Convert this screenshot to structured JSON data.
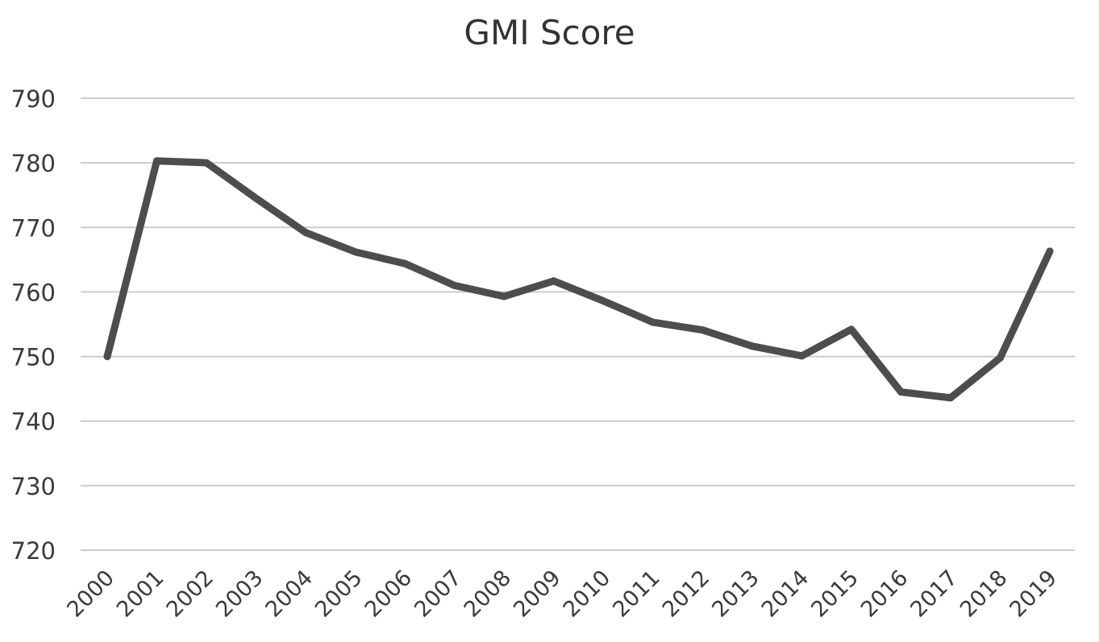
{
  "chart_data": {
    "type": "line",
    "title": "GMI Score",
    "xlabel": "",
    "ylabel": "",
    "categories": [
      "2000",
      "2001",
      "2002",
      "2003",
      "2004",
      "2005",
      "2006",
      "2007",
      "2008",
      "2009",
      "2010",
      "2011",
      "2012",
      "2013",
      "2014",
      "2015",
      "2016",
      "2017",
      "2018",
      "2019"
    ],
    "series": [
      {
        "values": [
          750,
          780.3,
          780,
          774.5,
          769.2,
          766.2,
          764.4,
          761,
          759.3,
          761.7,
          758.6,
          755.3,
          754.1,
          751.6,
          750.1,
          754.2,
          744.5,
          743.6,
          749.8,
          766.3
        ]
      }
    ],
    "ylim": [
      720,
      790
    ],
    "yticks": [
      720,
      730,
      740,
      750,
      760,
      770,
      780,
      790
    ],
    "grid": "horizontal",
    "legend": "none",
    "colors": {
      "line": "#4d4d4d",
      "grid": "#cccccc",
      "text": "#3a3a3a"
    }
  }
}
